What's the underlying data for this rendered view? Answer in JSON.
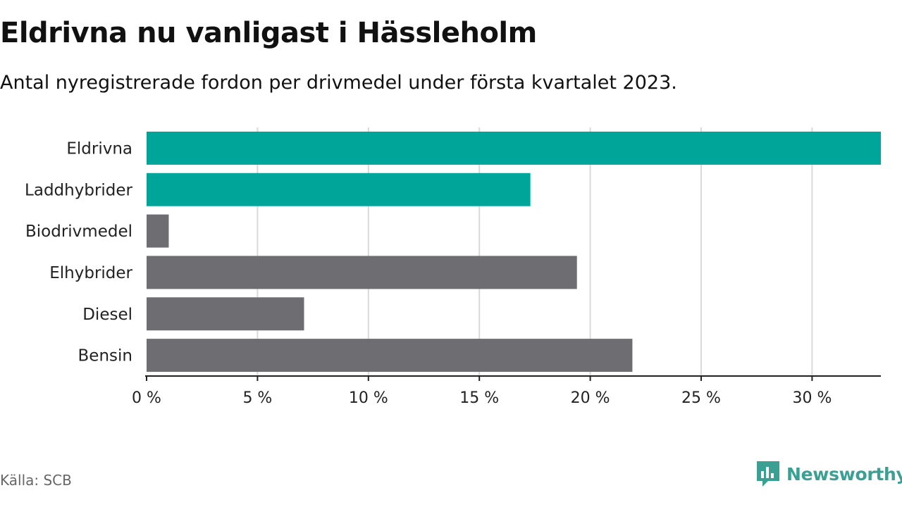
{
  "header": {
    "title": "Eldrivna nu vanligast i Hässleholm",
    "subtitle": "Antal nyregistrerade fordon per drivmedel under första kvartalet 2023."
  },
  "footer": {
    "source": "Källa: SCB",
    "brand": "Newsworthy"
  },
  "colors": {
    "highlight": "#00a59a",
    "default": "#6e6d72",
    "grid": "#d9d9d9",
    "brand": "#3aa093"
  },
  "chart_data": {
    "type": "bar",
    "orientation": "horizontal",
    "categories": [
      "Eldrivna",
      "Laddhybrider",
      "Biodrivmedel",
      "Elhybrider",
      "Diesel",
      "Bensin"
    ],
    "values": [
      33.1,
      17.3,
      1.0,
      19.4,
      7.1,
      21.9
    ],
    "highlighted": [
      true,
      true,
      false,
      false,
      false,
      false
    ],
    "unit": "%",
    "xlim": [
      0,
      33.1
    ],
    "xticks": [
      0,
      5,
      10,
      15,
      20,
      25,
      30
    ],
    "xtick_labels": [
      "0 %",
      "5 %",
      "10 %",
      "15 %",
      "20 %",
      "25 %",
      "30 %"
    ],
    "grid": true
  }
}
